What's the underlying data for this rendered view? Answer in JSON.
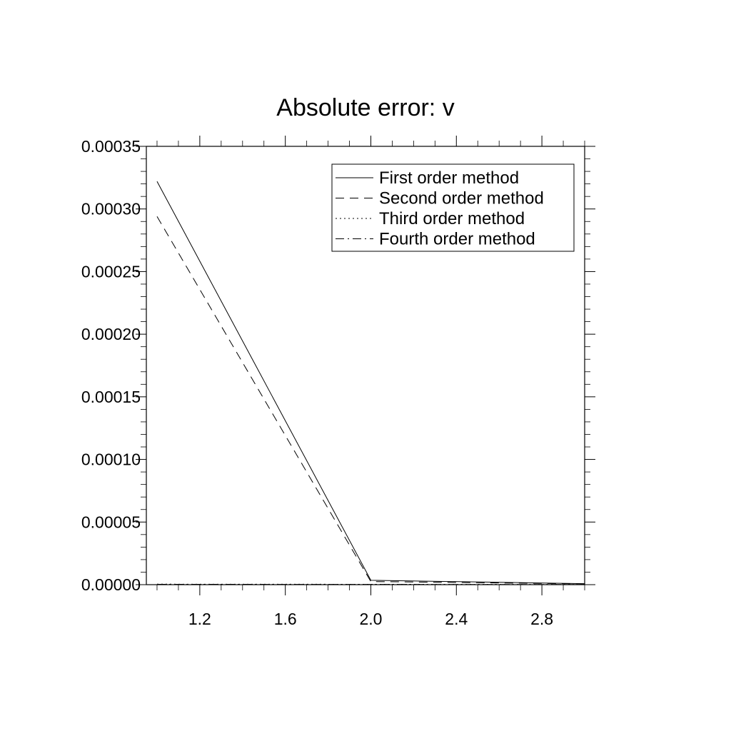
{
  "chart_data": {
    "type": "line",
    "title": "Absolute error: v",
    "xlabel": "",
    "ylabel": "",
    "xlim": [
      0.95,
      3.0
    ],
    "ylim": [
      0.0,
      0.00035
    ],
    "x_ticks": [
      "1.2",
      "1.6",
      "2.0",
      "2.4",
      "2.8"
    ],
    "x_tick_values": [
      1.2,
      1.6,
      2.0,
      2.4,
      2.8
    ],
    "y_ticks": [
      "0.00000",
      "0.00005",
      "0.00010",
      "0.00015",
      "0.00020",
      "0.00025",
      "0.00030",
      "0.00035"
    ],
    "y_tick_values": [
      0.0,
      5e-05,
      0.0001,
      0.00015,
      0.0002,
      0.00025,
      0.0003,
      0.00035
    ],
    "x": [
      1.0,
      2.0,
      3.0
    ],
    "series": [
      {
        "name": "First order method",
        "style": "solid",
        "values": [
          0.000322,
          3.5e-06,
          8e-07
        ]
      },
      {
        "name": "Second order method",
        "style": "dashed",
        "values": [
          0.000294,
          2.5e-06,
          6e-07
        ]
      },
      {
        "name": "Third order method",
        "style": "dotted",
        "values": [
          4e-07,
          3e-07,
          1e-07
        ]
      },
      {
        "name": "Fourth order method",
        "style": "dash-dot",
        "values": [
          3e-07,
          2e-07,
          1e-07
        ]
      }
    ],
    "grid": false,
    "legend_position": "top-right",
    "line_color": "#000000"
  }
}
